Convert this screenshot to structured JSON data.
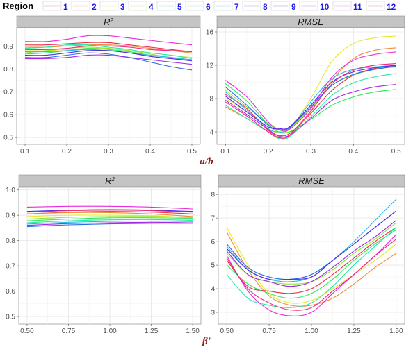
{
  "legend": {
    "title": "Region",
    "labels": [
      "1",
      "2",
      "3",
      "4",
      "5",
      "6",
      "7",
      "8",
      "9",
      "10",
      "11",
      "12"
    ],
    "colors": [
      "#f0294a",
      "#f08a3a",
      "#e8e82a",
      "#8ae830",
      "#2ae85a",
      "#2ae8a8",
      "#2ab8e8",
      "#2a6ae8",
      "#4a2ae8",
      "#a02ae8",
      "#e82ae0",
      "#e82a7a"
    ]
  },
  "chart_data": [
    {
      "type": "line",
      "panel": "top-left",
      "title": "R2",
      "xlabel": "a/b",
      "ylabel": "",
      "xlim": [
        0.08,
        0.52
      ],
      "ylim": [
        0.47,
        0.98
      ],
      "xticks": [
        0.1,
        0.2,
        0.3,
        0.4,
        0.5
      ],
      "xtick_labels": [
        "0.1",
        "0.2",
        "0.3",
        "0.4",
        "0.5"
      ],
      "yticks": [
        0.5,
        0.6,
        0.7,
        0.8,
        0.9
      ],
      "ytick_labels": [
        "0.5",
        "0.6",
        "0.7",
        "0.8",
        "0.9"
      ],
      "x": [
        0.1,
        0.15,
        0.2,
        0.25,
        0.3,
        0.35,
        0.4,
        0.45,
        0.5
      ],
      "series": [
        {
          "name": "1",
          "values": [
            0.905,
            0.905,
            0.91,
            0.915,
            0.915,
            0.905,
            0.895,
            0.885,
            0.875
          ]
        },
        {
          "name": "2",
          "values": [
            0.895,
            0.895,
            0.9,
            0.905,
            0.905,
            0.9,
            0.89,
            0.88,
            0.87
          ]
        },
        {
          "name": "3",
          "values": [
            0.88,
            0.88,
            0.885,
            0.89,
            0.89,
            0.88,
            0.87,
            0.86,
            0.85
          ]
        },
        {
          "name": "4",
          "values": [
            0.87,
            0.88,
            0.89,
            0.895,
            0.89,
            0.88,
            0.865,
            0.85,
            0.84
          ]
        },
        {
          "name": "5",
          "values": [
            0.865,
            0.87,
            0.88,
            0.89,
            0.885,
            0.875,
            0.86,
            0.85,
            0.835
          ]
        },
        {
          "name": "6",
          "values": [
            0.89,
            0.895,
            0.905,
            0.905,
            0.895,
            0.885,
            0.87,
            0.86,
            0.845
          ]
        },
        {
          "name": "7",
          "values": [
            0.875,
            0.875,
            0.88,
            0.885,
            0.88,
            0.87,
            0.86,
            0.85,
            0.84
          ]
        },
        {
          "name": "8",
          "values": [
            0.85,
            0.85,
            0.86,
            0.87,
            0.865,
            0.85,
            0.83,
            0.81,
            0.795
          ]
        },
        {
          "name": "9",
          "values": [
            0.86,
            0.86,
            0.87,
            0.88,
            0.88,
            0.87,
            0.855,
            0.845,
            0.835
          ]
        },
        {
          "name": "10",
          "values": [
            0.845,
            0.845,
            0.85,
            0.86,
            0.86,
            0.85,
            0.84,
            0.83,
            0.82
          ]
        },
        {
          "name": "11",
          "values": [
            0.92,
            0.92,
            0.93,
            0.945,
            0.945,
            0.935,
            0.925,
            0.915,
            0.905
          ]
        },
        {
          "name": "12",
          "values": [
            0.885,
            0.885,
            0.89,
            0.9,
            0.9,
            0.895,
            0.885,
            0.88,
            0.875
          ]
        }
      ]
    },
    {
      "type": "line",
      "panel": "top-right",
      "title": "RMSE",
      "xlabel": "a/b",
      "ylabel": "",
      "xlim": [
        0.08,
        0.52
      ],
      "ylim": [
        2.5,
        16.5
      ],
      "xticks": [
        0.1,
        0.2,
        0.3,
        0.4,
        0.5
      ],
      "xtick_labels": [
        "0.1",
        "0.2",
        "0.3",
        "0.4",
        "0.5"
      ],
      "yticks": [
        4,
        8,
        12,
        16
      ],
      "ytick_labels": [
        "4",
        "8",
        "12",
        "16"
      ],
      "x": [
        0.1,
        0.15,
        0.2,
        0.225,
        0.25,
        0.3,
        0.35,
        0.4,
        0.45,
        0.5
      ],
      "series": [
        {
          "name": "1",
          "values": [
            8.5,
            6.8,
            4.2,
            3.6,
            3.8,
            6.2,
            9.0,
            10.8,
            11.6,
            12.0
          ]
        },
        {
          "name": "2",
          "values": [
            7.0,
            5.6,
            4.0,
            3.4,
            3.5,
            6.4,
            10.2,
            12.8,
            13.8,
            14.1
          ]
        },
        {
          "name": "3",
          "values": [
            8.0,
            6.4,
            4.4,
            3.9,
            4.3,
            8.0,
            12.5,
            14.6,
            15.3,
            15.5
          ]
        },
        {
          "name": "4",
          "values": [
            9.0,
            7.0,
            5.0,
            4.2,
            4.4,
            6.8,
            9.6,
            10.8,
            11.5,
            11.8
          ]
        },
        {
          "name": "5",
          "values": [
            9.8,
            7.7,
            4.9,
            4.0,
            4.0,
            5.5,
            7.2,
            8.2,
            8.8,
            9.1
          ]
        },
        {
          "name": "6",
          "values": [
            7.2,
            5.6,
            4.0,
            3.2,
            3.4,
            5.8,
            8.4,
            9.9,
            10.6,
            11.0
          ]
        },
        {
          "name": "7",
          "values": [
            8.8,
            6.6,
            4.4,
            4.0,
            4.4,
            7.6,
            10.4,
            11.5,
            11.8,
            12.0
          ]
        },
        {
          "name": "8",
          "values": [
            9.4,
            7.2,
            4.8,
            4.3,
            4.5,
            7.0,
            9.6,
            10.9,
            11.5,
            11.9
          ]
        },
        {
          "name": "9",
          "values": [
            8.3,
            6.4,
            4.6,
            4.4,
            4.6,
            7.2,
            10.0,
            11.2,
            11.7,
            12.0
          ]
        },
        {
          "name": "10",
          "values": [
            7.8,
            6.1,
            4.3,
            3.5,
            3.6,
            5.6,
            7.8,
            8.8,
            9.4,
            9.7
          ]
        },
        {
          "name": "11",
          "values": [
            10.2,
            8.2,
            5.2,
            4.3,
            4.3,
            6.8,
            10.6,
            12.6,
            13.3,
            13.6
          ]
        },
        {
          "name": "12",
          "values": [
            7.6,
            5.9,
            4.0,
            3.3,
            3.6,
            6.5,
            9.8,
            11.4,
            12.0,
            12.2
          ]
        }
      ]
    },
    {
      "type": "line",
      "panel": "bottom-left",
      "title": "R2",
      "xlabel": "β'",
      "ylabel": "",
      "xlim": [
        0.45,
        1.55
      ],
      "ylim": [
        0.47,
        1.01
      ],
      "xticks": [
        0.5,
        0.75,
        1.0,
        1.25,
        1.5
      ],
      "xtick_labels": [
        "0.50",
        "0.75",
        "1.00",
        "1.25",
        "1.50"
      ],
      "yticks": [
        0.5,
        0.6,
        0.7,
        0.8,
        0.9,
        1.0
      ],
      "ytick_labels": [
        "0.5",
        "0.6",
        "0.7",
        "0.8",
        "0.9",
        "1.0"
      ],
      "x": [
        0.5,
        0.75,
        1.0,
        1.25,
        1.5
      ],
      "series": [
        {
          "name": "1",
          "values": [
            0.905,
            0.912,
            0.915,
            0.912,
            0.905
          ]
        },
        {
          "name": "2",
          "values": [
            0.905,
            0.91,
            0.91,
            0.905,
            0.895
          ]
        },
        {
          "name": "3",
          "values": [
            0.895,
            0.9,
            0.9,
            0.898,
            0.89
          ]
        },
        {
          "name": "4",
          "values": [
            0.885,
            0.892,
            0.895,
            0.895,
            0.892
          ]
        },
        {
          "name": "5",
          "values": [
            0.878,
            0.885,
            0.89,
            0.89,
            0.888
          ]
        },
        {
          "name": "6",
          "values": [
            0.87,
            0.878,
            0.882,
            0.883,
            0.88
          ]
        },
        {
          "name": "7",
          "values": [
            0.865,
            0.872,
            0.876,
            0.877,
            0.875
          ]
        },
        {
          "name": "8",
          "values": [
            0.855,
            0.862,
            0.866,
            0.868,
            0.868
          ]
        },
        {
          "name": "9",
          "values": [
            0.915,
            0.92,
            0.922,
            0.92,
            0.915
          ]
        },
        {
          "name": "10",
          "values": [
            0.86,
            0.867,
            0.87,
            0.872,
            0.87
          ]
        },
        {
          "name": "11",
          "values": [
            0.932,
            0.935,
            0.935,
            0.932,
            0.925
          ]
        },
        {
          "name": "12",
          "values": [
            0.912,
            0.918,
            0.92,
            0.918,
            0.912
          ]
        }
      ]
    },
    {
      "type": "line",
      "panel": "bottom-right",
      "title": "RMSE",
      "xlabel": "β'",
      "ylabel": "",
      "xlim": [
        0.45,
        1.55
      ],
      "ylim": [
        2.5,
        8.3
      ],
      "xticks": [
        0.5,
        0.75,
        1.0,
        1.25,
        1.5
      ],
      "xtick_labels": [
        "0.50",
        "0.75",
        "1.00",
        "1.25",
        "1.50"
      ],
      "yticks": [
        3,
        4,
        5,
        6,
        7,
        8
      ],
      "ytick_labels": [
        "3",
        "4",
        "5",
        "6",
        "7",
        "8"
      ],
      "x": [
        0.5,
        0.625,
        0.75,
        0.875,
        1.0,
        1.125,
        1.25,
        1.375,
        1.5
      ],
      "series": [
        {
          "name": "1",
          "values": [
            5.2,
            4.1,
            3.9,
            3.8,
            4.0,
            4.6,
            5.3,
            6.0,
            6.6
          ]
        },
        {
          "name": "2",
          "values": [
            6.4,
            4.8,
            3.7,
            3.3,
            3.3,
            3.6,
            4.2,
            4.9,
            5.5
          ]
        },
        {
          "name": "3",
          "values": [
            6.6,
            5.0,
            3.8,
            3.4,
            3.5,
            4.0,
            4.6,
            5.2,
            5.9
          ]
        },
        {
          "name": "4",
          "values": [
            5.5,
            4.6,
            4.3,
            4.2,
            4.3,
            4.8,
            5.5,
            6.1,
            6.8
          ]
        },
        {
          "name": "5",
          "values": [
            5.0,
            4.2,
            3.8,
            3.6,
            3.8,
            4.4,
            5.2,
            5.9,
            6.5
          ]
        },
        {
          "name": "6",
          "values": [
            4.6,
            3.6,
            3.3,
            3.2,
            3.4,
            4.1,
            5.0,
            5.8,
            6.6
          ]
        },
        {
          "name": "7",
          "values": [
            5.8,
            4.8,
            4.4,
            4.3,
            4.5,
            5.2,
            6.0,
            6.9,
            7.8
          ]
        },
        {
          "name": "8",
          "values": [
            5.9,
            4.9,
            4.5,
            4.4,
            4.6,
            5.2,
            5.9,
            6.6,
            7.3
          ]
        },
        {
          "name": "9",
          "values": [
            5.7,
            4.8,
            4.4,
            4.4,
            4.5,
            5.2,
            5.9,
            6.6,
            7.3
          ]
        },
        {
          "name": "10",
          "values": [
            5.6,
            4.6,
            4.3,
            4.1,
            4.3,
            4.9,
            5.6,
            6.2,
            6.9
          ]
        },
        {
          "name": "11",
          "values": [
            5.4,
            3.9,
            3.1,
            2.85,
            3.0,
            3.8,
            4.6,
            5.4,
            6.3
          ]
        },
        {
          "name": "12",
          "values": [
            5.3,
            4.0,
            3.4,
            3.1,
            3.2,
            3.9,
            4.6,
            5.4,
            6.1
          ]
        }
      ]
    }
  ]
}
